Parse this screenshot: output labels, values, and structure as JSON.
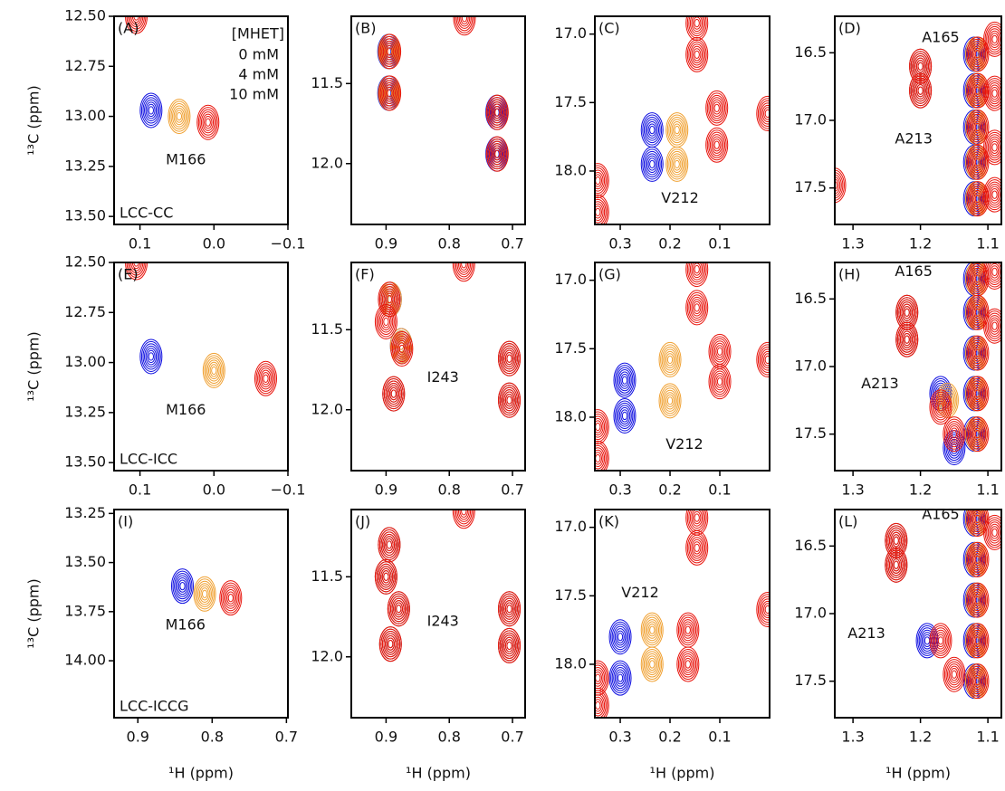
{
  "chart_data": [
    {
      "type": "contour",
      "label": "(A)",
      "sample": "LCC-CC",
      "ylabel": "¹³C (ppm)",
      "legend_title": "[MHET]",
      "xlim": [
        0.135,
        -0.1
      ],
      "xticks": [
        0.1,
        {
          "value": 0,
          "label": "0.0"
        },
        {
          "value": -0.1,
          "label": "−0.1"
        }
      ],
      "ylim": [
        13.54,
        12.5
      ],
      "yticks": [
        {
          "value": 12.5,
          "label": "12.50"
        },
        12.75,
        {
          "value": 13,
          "label": "13.00"
        },
        13.25,
        {
          "value": 13.5,
          "label": "13.50"
        }
      ],
      "annotations": [
        {
          "text": "M166",
          "x": 0.038,
          "y": 13.22
        }
      ],
      "series": [
        {
          "name": "0 mM",
          "color": "#1010e0",
          "x": [
            0.085
          ],
          "y": [
            12.97
          ]
        },
        {
          "name": "4 mM",
          "color": "#f0a030",
          "x": [
            0.047
          ],
          "y": [
            13.0
          ]
        },
        {
          "name": "10 mM",
          "color": "#e8150d",
          "x": [
            0.008,
            0.105
          ],
          "y": [
            13.03,
            12.5
          ]
        }
      ]
    },
    {
      "type": "contour",
      "label": "(B)",
      "xlim": [
        0.955,
        0.68
      ],
      "xticks": [
        0.9,
        0.8,
        0.7
      ],
      "ylim": [
        12.38,
        11.08
      ],
      "yticks": [
        11.5,
        {
          "value": 12,
          "label": "12.0"
        }
      ],
      "annotations": [],
      "series": [
        {
          "color": "#1010e0",
          "x": [
            0.896,
            0.896,
            0.725,
            0.725
          ],
          "y": [
            11.3,
            11.56,
            11.68,
            11.94
          ]
        },
        {
          "color": "#f0a030",
          "x": [
            0.895,
            0.895,
            0.724,
            0.724
          ],
          "y": [
            11.3,
            11.56,
            11.68,
            11.94
          ]
        },
        {
          "color": "#e8150d",
          "x": [
            0.894,
            0.894,
            0.724,
            0.724,
            0.776
          ],
          "y": [
            11.3,
            11.56,
            11.68,
            11.94,
            11.09
          ]
        }
      ]
    },
    {
      "type": "contour",
      "label": "(C)",
      "xlim": [
        0.351,
        0.0
      ],
      "xticks": [
        0.3,
        0.2,
        0.1
      ],
      "ylim": [
        18.39,
        16.87
      ],
      "yticks": [
        {
          "value": 17,
          "label": "17.0"
        },
        17.5,
        {
          "value": 18,
          "label": "18.0"
        }
      ],
      "annotations": [
        {
          "text": "V212",
          "x": 0.18,
          "y": 18.2
        }
      ],
      "series": [
        {
          "color": "#1010e0",
          "x": [
            0.236,
            0.236
          ],
          "y": [
            17.7,
            17.95
          ]
        },
        {
          "color": "#f0a030",
          "x": [
            0.186,
            0.186
          ],
          "y": [
            17.7,
            17.95
          ]
        },
        {
          "color": "#e8150d",
          "x": [
            0.106,
            0.106,
            0.146,
            0.146,
            0.345,
            0.345,
            0.004
          ],
          "y": [
            17.54,
            17.81,
            16.92,
            17.15,
            18.07,
            18.3,
            17.58
          ]
        }
      ]
    },
    {
      "type": "contour",
      "label": "(D)",
      "xlim": [
        1.327,
        1.08
      ],
      "xticks": [
        1.3,
        1.2,
        1.1
      ],
      "ylim": [
        17.77,
        16.23
      ],
      "yticks": [
        16.5,
        {
          "value": 17,
          "label": "17.0"
        },
        17.5
      ],
      "annotations": [
        {
          "text": "A165",
          "x": 1.17,
          "y": 16.39
        },
        {
          "text": "A213",
          "x": 1.21,
          "y": 17.14
        }
      ],
      "series": [
        {
          "color": "#1010e0",
          "x": [
            1.2,
            1.2,
            1.12,
            1.12,
            1.12,
            1.12,
            1.12
          ],
          "y": [
            16.6,
            16.78,
            16.51,
            16.78,
            17.05,
            17.31,
            17.58
          ]
        },
        {
          "color": "#f0a030",
          "x": [
            1.2,
            1.2,
            1.117,
            1.117,
            1.117,
            1.117,
            1.117
          ],
          "y": [
            16.6,
            16.78,
            16.51,
            16.78,
            17.05,
            17.31,
            17.58
          ]
        },
        {
          "color": "#e8150d",
          "x": [
            1.2,
            1.2,
            1.115,
            1.115,
            1.115,
            1.115,
            1.115,
            1.09,
            1.09,
            1.09,
            1.09,
            1.327
          ],
          "y": [
            16.6,
            16.78,
            16.51,
            16.78,
            17.05,
            17.31,
            17.58,
            16.4,
            16.8,
            17.2,
            17.55,
            17.48
          ]
        }
      ]
    },
    {
      "type": "contour",
      "label": "(E)",
      "sample": "LCC-ICC",
      "ylabel": "¹³C (ppm)",
      "xlim": [
        0.135,
        -0.1
      ],
      "xticks": [
        0.1,
        {
          "value": 0,
          "label": "0.0"
        },
        {
          "value": -0.1,
          "label": "−0.1"
        }
      ],
      "ylim": [
        13.54,
        12.5
      ],
      "yticks": [
        {
          "value": 12.5,
          "label": "12.50"
        },
        12.75,
        {
          "value": 13,
          "label": "13.00"
        },
        13.25,
        {
          "value": 13.5,
          "label": "13.50"
        }
      ],
      "annotations": [
        {
          "text": "M166",
          "x": 0.038,
          "y": 13.24
        }
      ],
      "series": [
        {
          "color": "#1010e0",
          "x": [
            0.085
          ],
          "y": [
            12.97
          ]
        },
        {
          "color": "#f0a030",
          "x": [
            0.0
          ],
          "y": [
            13.04
          ]
        },
        {
          "color": "#e8150d",
          "x": [
            -0.07,
            0.105
          ],
          "y": [
            13.08,
            12.5
          ]
        }
      ]
    },
    {
      "type": "contour",
      "label": "(F)",
      "xlim": [
        0.955,
        0.68
      ],
      "xticks": [
        0.9,
        0.8,
        0.7
      ],
      "ylim": [
        12.38,
        11.08
      ],
      "yticks": [
        11.5,
        {
          "value": 12,
          "label": "12.0"
        }
      ],
      "annotations": [
        {
          "text": "I243",
          "x": 0.81,
          "y": 11.8
        }
      ],
      "series": [
        {
          "color": "#1010e0",
          "x": [
            0.893,
            0.876,
            0.888,
            0.705,
            0.705
          ],
          "y": [
            11.31,
            11.6,
            11.9,
            11.68,
            11.94
          ]
        },
        {
          "color": "#f0a030",
          "x": [
            0.893,
            0.876,
            0.888,
            0.705,
            0.705
          ],
          "y": [
            11.31,
            11.6,
            11.9,
            11.68,
            11.94
          ]
        },
        {
          "color": "#e8150d",
          "x": [
            0.895,
            0.9,
            0.875,
            0.888,
            0.705,
            0.705,
            0.777
          ],
          "y": [
            11.31,
            11.45,
            11.62,
            11.9,
            11.68,
            11.94,
            11.09
          ]
        }
      ]
    },
    {
      "type": "contour",
      "label": "(G)",
      "xlim": [
        0.351,
        0.0
      ],
      "xticks": [
        0.3,
        0.2,
        0.1
      ],
      "ylim": [
        18.39,
        16.87
      ],
      "yticks": [
        {
          "value": 17,
          "label": "17.0"
        },
        17.5,
        {
          "value": 18,
          "label": "18.0"
        }
      ],
      "annotations": [
        {
          "text": "V212",
          "x": 0.171,
          "y": 18.2
        }
      ],
      "series": [
        {
          "color": "#1010e0",
          "x": [
            0.291,
            0.291
          ],
          "y": [
            17.73,
            17.99
          ]
        },
        {
          "color": "#f0a030",
          "x": [
            0.2,
            0.2
          ],
          "y": [
            17.58,
            17.88
          ]
        },
        {
          "color": "#e8150d",
          "x": [
            0.1,
            0.1,
            0.146,
            0.146,
            0.345,
            0.345,
            0.004
          ],
          "y": [
            17.52,
            17.74,
            16.92,
            17.2,
            18.07,
            18.3,
            17.58
          ]
        }
      ]
    },
    {
      "type": "contour",
      "label": "(H)",
      "xlim": [
        1.327,
        1.08
      ],
      "xticks": [
        1.3,
        1.2,
        1.1
      ],
      "ylim": [
        17.77,
        16.23
      ],
      "yticks": [
        16.5,
        {
          "value": 17,
          "label": "17.0"
        },
        17.5
      ],
      "annotations": [
        {
          "text": "A165",
          "x": 1.21,
          "y": 16.3
        },
        {
          "text": "A213",
          "x": 1.26,
          "y": 17.13
        }
      ],
      "series": [
        {
          "color": "#1010e0",
          "x": [
            1.22,
            1.22,
            1.17,
            1.15,
            1.12,
            1.12,
            1.12,
            1.12,
            1.12
          ],
          "y": [
            16.6,
            16.8,
            17.2,
            17.6,
            16.35,
            16.6,
            16.9,
            17.2,
            17.5
          ]
        },
        {
          "color": "#f0a030",
          "x": [
            1.22,
            1.22,
            1.16,
            1.117,
            1.117,
            1.117,
            1.117,
            1.117
          ],
          "y": [
            16.6,
            16.8,
            17.25,
            16.35,
            16.6,
            16.9,
            17.2,
            17.5
          ]
        },
        {
          "color": "#e8150d",
          "x": [
            1.22,
            1.22,
            1.17,
            1.15,
            1.115,
            1.115,
            1.115,
            1.115,
            1.115,
            1.09,
            1.09
          ],
          "y": [
            16.6,
            16.8,
            17.3,
            17.5,
            16.35,
            16.6,
            16.9,
            17.2,
            17.5,
            16.3,
            16.7
          ]
        }
      ]
    },
    {
      "type": "contour",
      "label": "(I)",
      "sample": "LCC-ICCG",
      "ylabel": "¹³C (ppm)",
      "xlabel": "¹H (ppm)",
      "xlim": [
        0.932,
        0.698
      ],
      "xticks": [
        0.9,
        0.8,
        0.7
      ],
      "ylim": [
        14.29,
        13.23
      ],
      "yticks": [
        13.25,
        {
          "value": 13.5,
          "label": "13.50"
        },
        13.75,
        {
          "value": 14,
          "label": "14.00"
        }
      ],
      "annotations": [
        {
          "text": "M166",
          "x": 0.836,
          "y": 13.82
        }
      ],
      "series": [
        {
          "color": "#1010e0",
          "x": [
            0.84
          ],
          "y": [
            13.62
          ]
        },
        {
          "color": "#f0a030",
          "x": [
            0.81
          ],
          "y": [
            13.66
          ]
        },
        {
          "color": "#e8150d",
          "x": [
            0.775
          ],
          "y": [
            13.68
          ]
        }
      ]
    },
    {
      "type": "contour",
      "label": "(J)",
      "xlabel": "¹H (ppm)",
      "xlim": [
        0.955,
        0.68
      ],
      "xticks": [
        0.9,
        0.8,
        0.7
      ],
      "ylim": [
        12.38,
        11.08
      ],
      "yticks": [
        11.5,
        {
          "value": 12,
          "label": "12.0"
        }
      ],
      "annotations": [
        {
          "text": "I243",
          "x": 0.81,
          "y": 11.78
        }
      ],
      "series": [
        {
          "color": "#1010e0",
          "x": [
            0.895,
            0.9,
            0.88,
            0.893,
            0.705,
            0.705
          ],
          "y": [
            11.3,
            11.5,
            11.7,
            11.92,
            11.7,
            11.93
          ]
        },
        {
          "color": "#f0a030",
          "x": [
            0.895,
            0.9,
            0.88,
            0.893,
            0.705,
            0.705
          ],
          "y": [
            11.3,
            11.5,
            11.7,
            11.92,
            11.7,
            11.93
          ]
        },
        {
          "color": "#e8150d",
          "x": [
            0.895,
            0.9,
            0.88,
            0.893,
            0.705,
            0.705,
            0.777
          ],
          "y": [
            11.3,
            11.5,
            11.7,
            11.92,
            11.7,
            11.93,
            11.09
          ]
        }
      ]
    },
    {
      "type": "contour",
      "label": "(K)",
      "xlabel": "¹H (ppm)",
      "xlim": [
        0.351,
        0.0
      ],
      "xticks": [
        0.3,
        0.2,
        0.1
      ],
      "ylim": [
        18.39,
        16.87
      ],
      "yticks": [
        {
          "value": 17,
          "label": "17.0"
        },
        17.5,
        {
          "value": 18,
          "label": "18.0"
        }
      ],
      "annotations": [
        {
          "text": "V212",
          "x": 0.26,
          "y": 17.48
        }
      ],
      "series": [
        {
          "color": "#1010e0",
          "x": [
            0.3,
            0.3
          ],
          "y": [
            17.8,
            18.1
          ]
        },
        {
          "color": "#f0a030",
          "x": [
            0.236,
            0.236
          ],
          "y": [
            17.75,
            18.0
          ]
        },
        {
          "color": "#e8150d",
          "x": [
            0.164,
            0.164,
            0.146,
            0.146,
            0.345,
            0.345,
            0.004
          ],
          "y": [
            17.75,
            18.0,
            16.93,
            17.15,
            18.1,
            18.3,
            17.6
          ]
        }
      ]
    },
    {
      "type": "contour",
      "label": "(L)",
      "xlabel": "¹H (ppm)",
      "xlim": [
        1.327,
        1.08
      ],
      "xticks": [
        1.3,
        1.2,
        1.1
      ],
      "ylim": [
        17.77,
        16.23
      ],
      "yticks": [
        16.5,
        {
          "value": 17,
          "label": "17.0"
        },
        17.5
      ],
      "annotations": [
        {
          "text": "A165",
          "x": 1.17,
          "y": 16.27
        },
        {
          "text": "A213",
          "x": 1.28,
          "y": 17.15
        }
      ],
      "series": [
        {
          "color": "#1010e0",
          "x": [
            1.236,
            1.236,
            1.19,
            1.12,
            1.12,
            1.12,
            1.12,
            1.12
          ],
          "y": [
            16.46,
            16.64,
            17.2,
            16.3,
            16.6,
            16.9,
            17.2,
            17.5
          ]
        },
        {
          "color": "#f0a030",
          "x": [
            1.236,
            1.236,
            1.117,
            1.117,
            1.117,
            1.117,
            1.117
          ],
          "y": [
            16.46,
            16.64,
            16.3,
            16.6,
            16.9,
            17.2,
            17.5
          ]
        },
        {
          "color": "#e8150d",
          "x": [
            1.236,
            1.236,
            1.17,
            1.15,
            1.115,
            1.115,
            1.115,
            1.115,
            1.115,
            1.09
          ],
          "y": [
            16.46,
            16.64,
            17.2,
            17.45,
            16.3,
            16.6,
            16.9,
            17.2,
            17.5,
            16.4
          ]
        }
      ]
    }
  ]
}
